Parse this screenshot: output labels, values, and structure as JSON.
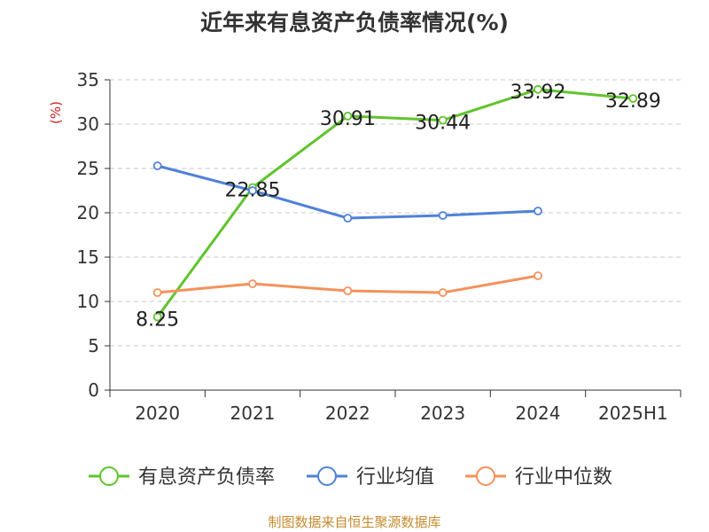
{
  "chart_data": {
    "type": "line",
    "title": "近年来有息资产负债率情况(%)",
    "ylabel": "(%)",
    "xlabel": "",
    "categories": [
      "2020",
      "2021",
      "2022",
      "2023",
      "2024",
      "2025H1"
    ],
    "ylim": [
      0,
      35
    ],
    "yticks": [
      0,
      5,
      10,
      15,
      20,
      25,
      30,
      35
    ],
    "grid": true,
    "legend_position": "bottom",
    "series": [
      {
        "name": "有息资产负债率",
        "color": "#5fc42c",
        "values": [
          8.25,
          22.85,
          30.91,
          30.44,
          33.92,
          32.89
        ],
        "labels": [
          "8.25",
          "22.85",
          "30.91",
          "30.44",
          "33.92",
          "32.89"
        ]
      },
      {
        "name": "行业均值",
        "color": "#4f81d9",
        "values": [
          25.3,
          22.5,
          19.4,
          19.7,
          20.2,
          null
        ]
      },
      {
        "name": "行业中位数",
        "color": "#f5915a",
        "values": [
          11.0,
          12.0,
          11.2,
          11.0,
          12.9,
          null
        ]
      }
    ]
  },
  "source": "制图数据来自恒生聚源数据库"
}
